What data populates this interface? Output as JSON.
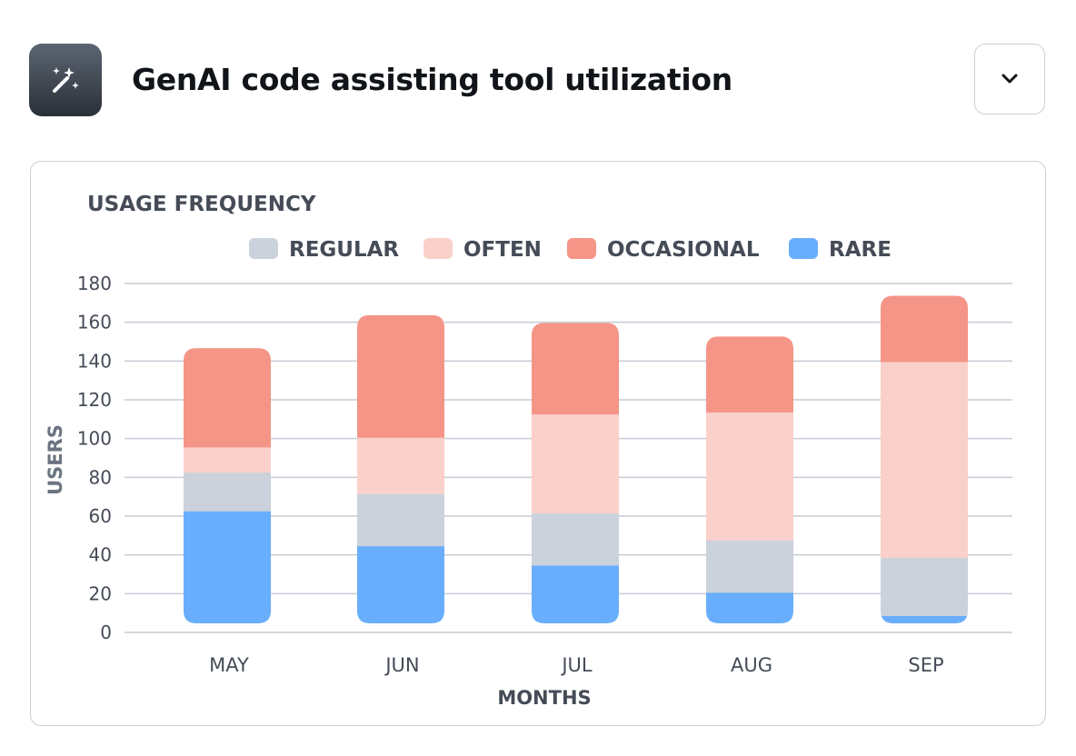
{
  "header": {
    "title": "GenAI code assisting tool utilization",
    "icon": "magic-wand-sparkles-icon",
    "dropdown_icon": "chevron-down-icon"
  },
  "colors": {
    "regular": "#cbd2dc",
    "often": "#fad1ca",
    "occasional": "#f59587",
    "rare": "#69aefc",
    "grid": "#c5ccd4",
    "text": "#454c57"
  },
  "chart_data": {
    "type": "bar",
    "stacked": true,
    "title": "USAGE FREQUENCY",
    "xlabel": "MONTHS",
    "ylabel": "USERS",
    "ylim": [
      0,
      180
    ],
    "yticks": [
      0,
      20,
      40,
      60,
      80,
      100,
      120,
      140,
      160,
      180
    ],
    "grid": true,
    "legend_position": "top-center",
    "categories": [
      "MAY",
      "JUN",
      "JUL",
      "AUG",
      "SEP"
    ],
    "series": [
      {
        "name": "RARE",
        "color": "#69aefc",
        "values": [
          58,
          40,
          30,
          16,
          4
        ]
      },
      {
        "name": "REGULAR",
        "color": "#cbd2dc",
        "values": [
          20,
          27,
          27,
          27,
          30
        ]
      },
      {
        "name": "OFTEN",
        "color": "#fad1ca",
        "values": [
          13,
          29,
          51,
          66,
          101
        ]
      },
      {
        "name": "OCCASIONAL",
        "color": "#f59587",
        "values": [
          51,
          63,
          47,
          39,
          34
        ]
      }
    ],
    "legend_order": [
      "REGULAR",
      "OFTEN",
      "OCCASIONAL",
      "RARE"
    ]
  }
}
